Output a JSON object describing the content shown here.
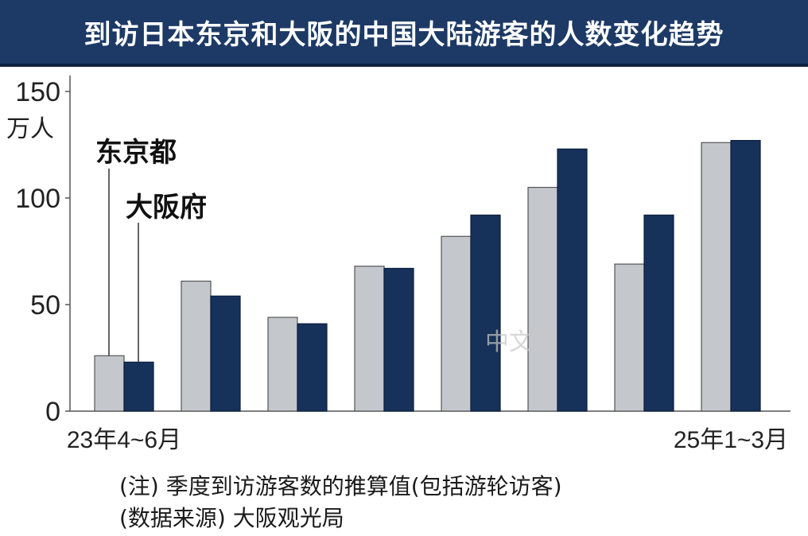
{
  "header": {
    "title": "到访日本东京和大阪的中国大陆游客的人数变化趋势"
  },
  "notes": {
    "note": "(注) 季度到访游客数的推算值(包括游轮访客)",
    "source": "(数据来源) 大阪观光局"
  },
  "watermark": {
    "text": "中文网"
  },
  "chart_data": {
    "type": "bar",
    "unit": "万人",
    "ylim": [
      0,
      150
    ],
    "yticks": [
      0,
      50,
      100,
      150
    ],
    "categories": [
      "23年4~6月",
      "",
      "",
      "",
      "",
      "",
      "",
      "25年1~3月"
    ],
    "series": [
      {
        "name": "东京都",
        "color": "#c4c7cc",
        "values": [
          26,
          61,
          44,
          68,
          82,
          105,
          69,
          126
        ]
      },
      {
        "name": "大阪府",
        "color": "#16315a",
        "values": [
          23,
          54,
          41,
          67,
          92,
          123,
          92,
          127
        ]
      }
    ],
    "legend": "callout-left"
  }
}
